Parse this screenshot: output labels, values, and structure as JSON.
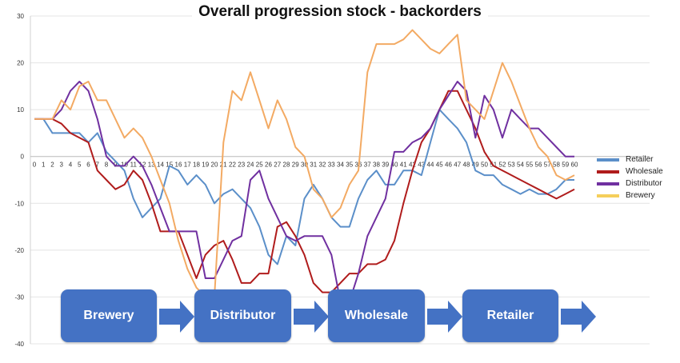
{
  "chart_data": {
    "type": "line",
    "title": "Overall progression stock - backorders",
    "x": [
      0,
      1,
      2,
      3,
      4,
      5,
      6,
      7,
      8,
      9,
      10,
      11,
      12,
      13,
      14,
      15,
      16,
      17,
      18,
      19,
      20,
      21,
      22,
      23,
      24,
      25,
      26,
      27,
      28,
      29,
      30,
      31,
      32,
      33,
      34,
      35,
      36,
      37,
      38,
      39,
      40,
      41,
      42,
      43,
      44,
      45,
      46,
      47,
      48,
      49,
      50,
      51,
      52,
      53,
      54,
      55,
      56,
      57,
      58,
      59,
      60
    ],
    "ylim": [
      -40,
      30
    ],
    "yticks": [
      30,
      20,
      10,
      0,
      -10,
      -20,
      -30,
      -40
    ],
    "grid": true,
    "legend_position": "right",
    "series": [
      {
        "name": "Retailer",
        "color": "#5b8fc9",
        "values": [
          8,
          8,
          5,
          5,
          5,
          5,
          3,
          5,
          1,
          -1,
          -3,
          -9,
          -13,
          -11,
          -9,
          -2,
          -3,
          -6,
          -4,
          -6,
          -10,
          -8,
          -7,
          -9,
          -11,
          -15,
          -21,
          -23,
          -17,
          -19,
          -9,
          -6,
          -9,
          -13,
          -15,
          -15,
          -9,
          -5,
          -3,
          -6,
          -6,
          -3,
          -3,
          -4,
          3,
          10,
          8,
          6,
          3,
          -3,
          -4,
          -4,
          -6,
          -7,
          -8,
          -7,
          -8,
          -8,
          -7,
          -5,
          -5
        ]
      },
      {
        "name": "Wholesale",
        "color": "#b01c1c",
        "values": [
          8,
          8,
          8,
          7,
          5,
          4,
          3,
          -3,
          -5,
          -7,
          -6,
          -3,
          -5,
          -10,
          -16,
          -16,
          -16,
          -21,
          -26,
          -21,
          -19,
          -18,
          -22,
          -27,
          -27,
          -25,
          -25,
          -15,
          -14,
          -17,
          -21,
          -27,
          -29,
          -29,
          -27,
          -25,
          -25,
          -23,
          -23,
          -22,
          -18,
          -10,
          -3,
          3,
          6,
          10,
          14,
          14,
          10,
          6,
          1,
          -2,
          -3,
          -4,
          -5,
          -6,
          -7,
          -8,
          -9,
          -8,
          -7
        ]
      },
      {
        "name": "Distributor",
        "color": "#7030a0",
        "values": [
          8,
          8,
          8,
          10,
          14,
          16,
          14,
          8,
          0,
          -2,
          -2,
          0,
          -2,
          -6,
          -11,
          -16,
          -16,
          -16,
          -16,
          -26,
          -26,
          -22,
          -18,
          -17,
          -5,
          -3,
          -9,
          -13,
          -17,
          -18,
          -17,
          -17,
          -17,
          -21,
          -31,
          -31,
          -25,
          -17,
          -13,
          -9,
          1,
          1,
          3,
          4,
          6,
          10,
          13,
          16,
          14,
          4,
          13,
          10,
          4,
          10,
          8,
          6,
          6,
          4,
          2,
          0,
          0
        ]
      },
      {
        "name": "Brewery",
        "color": "#f3aa63",
        "values": [
          8,
          8,
          8,
          12,
          10,
          15,
          16,
          12,
          12,
          8,
          4,
          6,
          4,
          0,
          -5,
          -10,
          -18,
          -24,
          -28,
          -30,
          -30,
          3,
          14,
          12,
          18,
          12,
          6,
          12,
          8,
          2,
          0,
          -7,
          -9,
          -13,
          -11,
          -6,
          -3,
          18,
          24,
          24,
          24,
          25,
          27,
          25,
          23,
          22,
          24,
          26,
          12,
          10,
          8,
          14,
          20,
          16,
          11,
          6,
          2,
          0,
          -4,
          -5,
          -4
        ]
      }
    ],
    "flow": [
      "Brewery",
      "Distributor",
      "Wholesale",
      "Retailer"
    ]
  }
}
